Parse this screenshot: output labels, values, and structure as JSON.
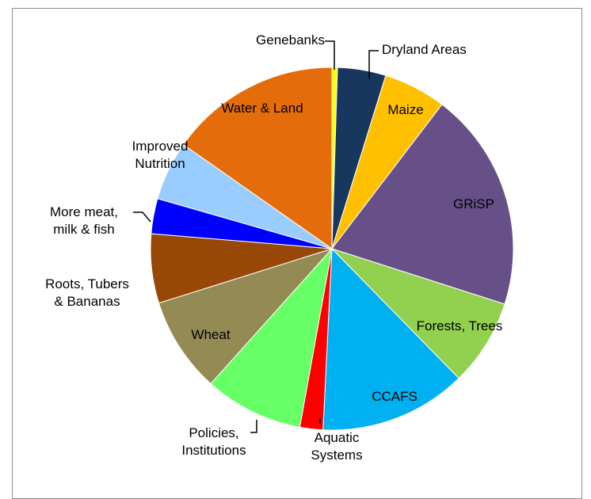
{
  "chart_data": {
    "type": "pie",
    "title": "",
    "start_angle_deg": 0,
    "direction": "clockwise",
    "slices": [
      {
        "label": "Genebanks",
        "value": 0.5,
        "color": "#ffff00"
      },
      {
        "label": "Dryland Areas",
        "value": 4.4,
        "color": "#17375e"
      },
      {
        "label": "Maize",
        "value": 5.7,
        "color": "#ffc000"
      },
      {
        "label": "GRiSP",
        "value": 20.0,
        "color": "#675088"
      },
      {
        "label": "Forests, Trees",
        "value": 7.9,
        "color": "#92d050"
      },
      {
        "label": "CCAFS",
        "value": 13.4,
        "color": "#00b0f0"
      },
      {
        "label": "Aquatic Systems",
        "value": 2.1,
        "color": "#ff0000"
      },
      {
        "label": "Policies, Institutions",
        "value": 9.0,
        "color": "#66ff66"
      },
      {
        "label": "Wheat",
        "value": 8.7,
        "color": "#948a54"
      },
      {
        "label": "Roots, Tubers & Bananas",
        "value": 6.3,
        "color": "#974706"
      },
      {
        "label": "More meat, milk & fish",
        "value": 3.2,
        "color": "#0000ff"
      },
      {
        "label": "Improved Nutrition",
        "value": 5.4,
        "color": "#99ccff"
      },
      {
        "label": "Water & Land",
        "value": 15.6,
        "color": "#e46c0a"
      }
    ]
  }
}
